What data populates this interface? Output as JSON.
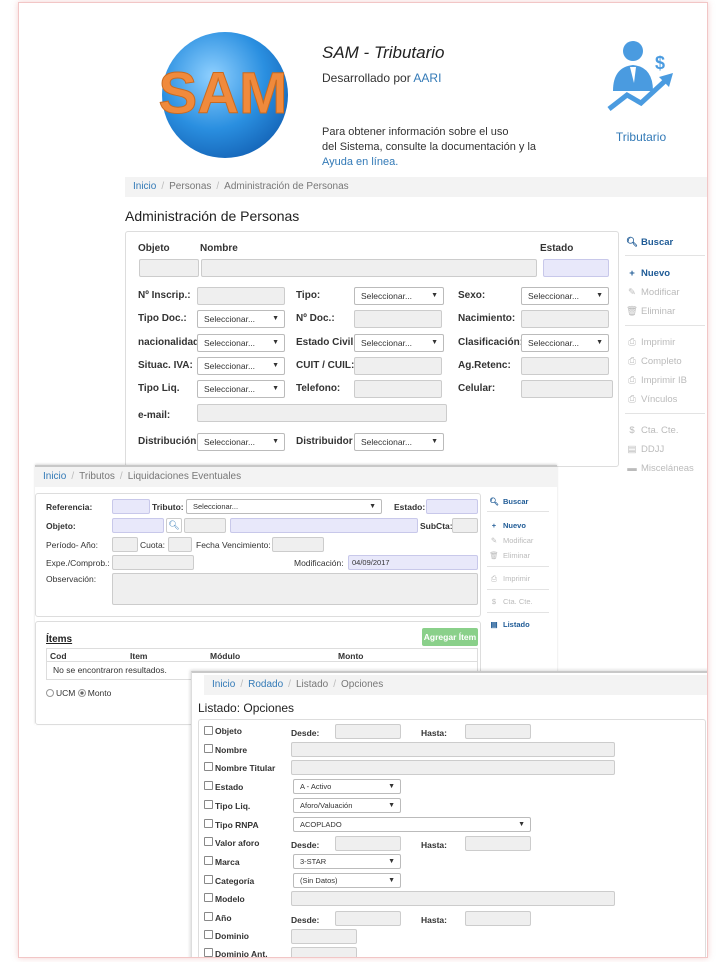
{
  "header": {
    "app_title": "SAM - Tributario",
    "dev_prefix": "Desarrollado por ",
    "dev_link": "AARI",
    "info_line1": "Para obtener información sobre el uso",
    "info_line2": "del Sistema, consulte la documentación y la",
    "info_link": "Ayuda en línea.",
    "logo_text": "SAM",
    "module_label": "Tributario"
  },
  "personas": {
    "breadcrumb": [
      "Inicio",
      "Personas",
      "Administración de Personas"
    ],
    "title": "Administración de Personas",
    "labels": {
      "objeto": "Objeto",
      "nombre": "Nombre",
      "estado": "Estado",
      "inscrip": "Nº Inscrip.:",
      "tipo": "Tipo:",
      "sexo": "Sexo:",
      "tipo_doc": "Tipo Doc.:",
      "nro_doc": "Nº Doc.:",
      "nacimiento": "Nacimiento:",
      "nacionalidad": "nacionalidad",
      "estado_civil": "Estado Civil:",
      "clasificacion": "Clasificación:",
      "situac_iva": "Situac. IVA:",
      "cuit": "CUIT / CUIL:",
      "ag_retenc": "Ag.Retenc:",
      "tipo_liq": "Tipo Liq.",
      "telefono": "Telefono:",
      "celular": "Celular:",
      "email": "e-mail:",
      "distribucion": "Distribución",
      "distribuidor": "Distribuidor"
    },
    "select_placeholder": "Seleccionar...",
    "sidebar": {
      "buscar": "Buscar",
      "nuevo": "Nuevo",
      "modificar": "Modificar",
      "eliminar": "Eliminar",
      "imprimir": "Imprimir",
      "completo": "Completo",
      "imprimir_ib": "Imprimir IB",
      "vinculos": "Vínculos",
      "cta_cte": "Cta. Cte.",
      "ddjj": "DDJJ",
      "miscelaneas": "Misceláneas"
    }
  },
  "liquidaciones": {
    "breadcrumb": [
      "Inicio",
      "Tributos",
      "Liquidaciones Eventuales"
    ],
    "labels": {
      "referencia": "Referencia:",
      "tributo": "Tributo:",
      "estado": "Estado:",
      "objeto": "Objeto:",
      "subcta": "SubCta:",
      "periodo": "Período- Año:",
      "cuota": "Cuota:",
      "fecha_venc": "Fecha Vencimiento:",
      "expe": "Expe./Comprob.:",
      "modificacion": "Modificación:",
      "observacion": "Observación:"
    },
    "tributo_select": "Seleccionar...",
    "modificacion_value": "04/09/2017",
    "items_title": "Ítems",
    "add_item": "Agregar Ítem",
    "columns": [
      "Cod",
      "Item",
      "Módulo",
      "Monto"
    ],
    "empty_text": "No se encontraron resultados.",
    "radio_ucm": "UCM",
    "radio_monto": "Monto",
    "sidebar": {
      "buscar": "Buscar",
      "nuevo": "Nuevo",
      "modificar": "Modificar",
      "eliminar": "Eliminar",
      "imprimir": "Imprimir",
      "cta_cte": "Cta. Cte.",
      "listado": "Listado"
    }
  },
  "rodado": {
    "breadcrumb": [
      "Inicio",
      "Rodado",
      "Listado",
      "Opciones"
    ],
    "title": "Listado: Opciones",
    "desde": "Desde:",
    "hasta": "Hasta:",
    "options": {
      "objeto": "Objeto",
      "nombre": "Nombre",
      "nombre_titular": "Nombre Titular",
      "estado": "Estado",
      "tipo_liq": "Tipo Liq.",
      "tipo_rnpa": "Tipo RNPA",
      "valor_aforo": "Valor aforo",
      "marca": "Marca",
      "categoria": "Categoría",
      "modelo": "Modelo",
      "anio": "Año",
      "dominio": "Dominio",
      "dominio_ant": "Dominio Ant."
    },
    "selects": {
      "estado": "A - Activo",
      "tipo_liq": "Aforo/Valuación",
      "tipo_rnpa": "ACOPLADO",
      "marca": "3-STAR",
      "categoria": "(Sin Datos)"
    }
  },
  "colors": {
    "accent": "#337ab7",
    "sidebar_active": "#1f5b96",
    "green_button": "#8ad08a",
    "logo_orange": "#f08a3c",
    "logo_blue": "#1e88d6"
  }
}
